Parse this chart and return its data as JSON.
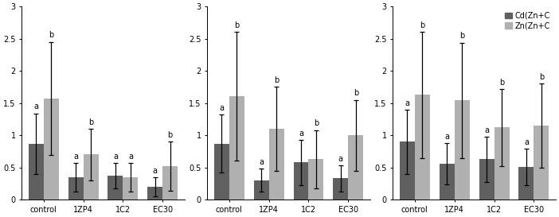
{
  "panels": [
    {
      "categories": [
        "control",
        "1ZP4",
        "1C2",
        "EC30"
      ],
      "cd_values": [
        0.87,
        0.35,
        0.37,
        0.2
      ],
      "zn_values": [
        1.57,
        0.7,
        0.35,
        0.52
      ],
      "cd_errors": [
        0.47,
        0.22,
        0.2,
        0.15
      ],
      "zn_errors": [
        0.88,
        0.4,
        0.22,
        0.38
      ],
      "cd_labels": [
        "a",
        "a",
        "a",
        "a"
      ],
      "zn_labels": [
        "b",
        "b",
        "a",
        "b"
      ]
    },
    {
      "categories": [
        "control",
        "1ZP4",
        "1C2",
        "EC30"
      ],
      "cd_values": [
        0.87,
        0.3,
        0.58,
        0.33
      ],
      "zn_values": [
        1.61,
        1.1,
        0.63,
        1.0
      ],
      "cd_errors": [
        0.45,
        0.18,
        0.35,
        0.2
      ],
      "zn_errors": [
        1.0,
        0.65,
        0.45,
        0.55
      ],
      "cd_labels": [
        "a",
        "a",
        "a",
        "a"
      ],
      "zn_labels": [
        "b",
        "b",
        "b",
        "b"
      ]
    },
    {
      "categories": [
        "control",
        "1ZP4",
        "1C2",
        "EC30"
      ],
      "cd_values": [
        0.9,
        0.56,
        0.63,
        0.51
      ],
      "zn_values": [
        1.63,
        1.54,
        1.12,
        1.15
      ],
      "cd_errors": [
        0.5,
        0.32,
        0.35,
        0.28
      ],
      "zn_errors": [
        0.98,
        0.9,
        0.6,
        0.65
      ],
      "cd_labels": [
        "a",
        "a",
        "a",
        "a"
      ],
      "zn_labels": [
        "b",
        "b",
        "b",
        "b"
      ]
    }
  ],
  "cd_color": "#606060",
  "zn_color": "#b0b0b0",
  "bar_width": 0.38,
  "legend_labels": [
    "Cd(Zn+C",
    "Zn(Zn+C"
  ],
  "error_capsize": 2,
  "error_color": "black",
  "error_linewidth": 0.9,
  "label_fontsize": 7,
  "tick_fontsize": 7,
  "legend_fontsize": 7,
  "ylim": [
    0,
    3
  ],
  "yticks": [
    0,
    0.5,
    1,
    1.5,
    2,
    2.5,
    3
  ]
}
